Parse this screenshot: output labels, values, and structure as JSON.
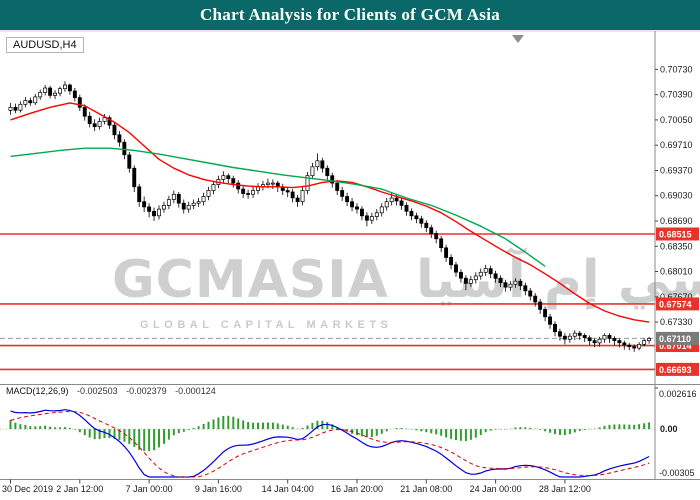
{
  "banner": {
    "title": "Chart Analysis for Clients of GCM Asia",
    "bg": "#0b6868",
    "fg": "#ffffff"
  },
  "chart": {
    "symbol_label": "AUDUSD,H4",
    "watermark": {
      "latin": "GCMASIA",
      "arabic": "جي سي إم آسيا",
      "red_mark": "●",
      "subtitle": "GLOBAL CAPITAL MARKETS"
    },
    "colors": {
      "level": "#e8332a",
      "ma_fast": "#ff0000",
      "ma_slow": "#00a94f",
      "macd_main": "#0000e0",
      "macd_signal": "#e00000",
      "macd_hist": "#2f9e2f",
      "bid_box": "#7a7a7a",
      "candle_up": "#ffffff",
      "candle_down": "#000000"
    }
  },
  "chart_data": {
    "type": "candlestick",
    "symbol": "AUDUSD",
    "timeframe": "H4",
    "price_axis": {
      "max": 0.7122,
      "min": 0.6651,
      "ticks": [
        "0.70730",
        "0.70390",
        "0.70050",
        "0.69710",
        "0.69370",
        "0.69030",
        "0.68690",
        "0.68350",
        "0.68010",
        "0.67670",
        "0.67330"
      ]
    },
    "time_axis": {
      "labels": [
        "30 Dec 2019",
        "2 Jan 12:00",
        "7 Jan 00:00",
        "9 Jan 16:00",
        "14 Jan 04:00",
        "16 Jan 20:00",
        "21 Jan 08:00",
        "24 Jan 00:00",
        "28 Jan 12:00"
      ],
      "anchor_indices": [
        0,
        14,
        28,
        42,
        56,
        70,
        84,
        98,
        112
      ]
    },
    "hlines": [
      {
        "price": 0.68515,
        "label": "0.68515"
      },
      {
        "price": 0.67574,
        "label": "0.67574"
      },
      {
        "price": 0.67014,
        "label": "0.67014"
      },
      {
        "price": 0.66693,
        "label": "0.66693"
      }
    ],
    "bid": {
      "price": 0.6711,
      "label": "0.67110"
    },
    "ma_fast": {
      "points": [
        [
          0,
          0.7005
        ],
        [
          4,
          0.7014
        ],
        [
          8,
          0.7022
        ],
        [
          12,
          0.7028
        ],
        [
          15,
          0.7024
        ],
        [
          18,
          0.7013
        ],
        [
          21,
          0.7002
        ],
        [
          24,
          0.6988
        ],
        [
          27,
          0.697
        ],
        [
          30,
          0.6952
        ],
        [
          33,
          0.694
        ],
        [
          36,
          0.6931
        ],
        [
          39,
          0.6925
        ],
        [
          42,
          0.6921
        ],
        [
          45,
          0.6918
        ],
        [
          48,
          0.6916
        ],
        [
          51,
          0.6915
        ],
        [
          54,
          0.6915
        ],
        [
          57,
          0.6914
        ],
        [
          60,
          0.6916
        ],
        [
          63,
          0.6921
        ],
        [
          66,
          0.6923
        ],
        [
          69,
          0.6921
        ],
        [
          72,
          0.6915
        ],
        [
          75,
          0.6908
        ],
        [
          78,
          0.6902
        ],
        [
          81,
          0.6896
        ],
        [
          84,
          0.6889
        ],
        [
          87,
          0.688
        ],
        [
          90,
          0.6868
        ],
        [
          93,
          0.6855
        ],
        [
          96,
          0.6843
        ],
        [
          99,
          0.6831
        ],
        [
          102,
          0.682
        ],
        [
          105,
          0.681
        ],
        [
          108,
          0.6798
        ],
        [
          111,
          0.6785
        ],
        [
          114,
          0.6771
        ],
        [
          117,
          0.6758
        ],
        [
          120,
          0.6748
        ],
        [
          123,
          0.6741
        ],
        [
          126,
          0.6736
        ],
        [
          129,
          0.6733
        ]
      ]
    },
    "ma_slow": {
      "points": [
        [
          0,
          0.6956
        ],
        [
          5,
          0.696
        ],
        [
          10,
          0.6964
        ],
        [
          15,
          0.6967
        ],
        [
          20,
          0.6967
        ],
        [
          25,
          0.6964
        ],
        [
          30,
          0.6959
        ],
        [
          35,
          0.6953
        ],
        [
          40,
          0.6947
        ],
        [
          45,
          0.6941
        ],
        [
          50,
          0.6936
        ],
        [
          55,
          0.6931
        ],
        [
          60,
          0.6927
        ],
        [
          65,
          0.6923
        ],
        [
          70,
          0.6918
        ],
        [
          75,
          0.6912
        ],
        [
          80,
          0.69
        ],
        [
          85,
          0.689
        ],
        [
          90,
          0.6877
        ],
        [
          95,
          0.6862
        ],
        [
          100,
          0.6845
        ],
        [
          104,
          0.6827
        ],
        [
          108,
          0.6808
        ]
      ]
    },
    "candles": [
      [
        0.7018,
        0.7028,
        0.7012,
        0.7022
      ],
      [
        0.7022,
        0.7027,
        0.7014,
        0.7018
      ],
      [
        0.7018,
        0.703,
        0.7015,
        0.7026
      ],
      [
        0.7026,
        0.7036,
        0.7022,
        0.7031
      ],
      [
        0.7031,
        0.7035,
        0.7024,
        0.7028
      ],
      [
        0.7028,
        0.704,
        0.7025,
        0.7036
      ],
      [
        0.7036,
        0.7046,
        0.7032,
        0.7042
      ],
      [
        0.7042,
        0.7052,
        0.7038,
        0.7048
      ],
      [
        0.7048,
        0.7051,
        0.7034,
        0.7038
      ],
      [
        0.7038,
        0.7045,
        0.7033,
        0.7041
      ],
      [
        0.7041,
        0.705,
        0.7037,
        0.7047
      ],
      [
        0.7047,
        0.7057,
        0.7043,
        0.7052
      ],
      [
        0.7052,
        0.7054,
        0.7039,
        0.7044
      ],
      [
        0.7044,
        0.7048,
        0.703,
        0.7035
      ],
      [
        0.7035,
        0.7039,
        0.7017,
        0.7022
      ],
      [
        0.7022,
        0.7026,
        0.7004,
        0.701
      ],
      [
        0.701,
        0.7016,
        0.6995,
        0.7
      ],
      [
        0.7,
        0.7006,
        0.699,
        0.6996
      ],
      [
        0.6996,
        0.7008,
        0.6992,
        0.7003
      ],
      [
        0.7003,
        0.7013,
        0.6999,
        0.7008
      ],
      [
        0.7008,
        0.7011,
        0.6993,
        0.6998
      ],
      [
        0.6998,
        0.7002,
        0.6979,
        0.6985
      ],
      [
        0.6985,
        0.699,
        0.6969,
        0.6975
      ],
      [
        0.6975,
        0.6979,
        0.6952,
        0.6958
      ],
      [
        0.6958,
        0.6962,
        0.6934,
        0.694
      ],
      [
        0.694,
        0.6944,
        0.6908,
        0.6915
      ],
      [
        0.6915,
        0.6919,
        0.6888,
        0.6895
      ],
      [
        0.6895,
        0.6902,
        0.6881,
        0.6888
      ],
      [
        0.6888,
        0.6893,
        0.6874,
        0.6882
      ],
      [
        0.6882,
        0.6887,
        0.6869,
        0.6876
      ],
      [
        0.6876,
        0.689,
        0.6871,
        0.6885
      ],
      [
        0.6885,
        0.6895,
        0.688,
        0.689
      ],
      [
        0.689,
        0.6903,
        0.6885,
        0.6898
      ],
      [
        0.6898,
        0.691,
        0.6893,
        0.6905
      ],
      [
        0.6905,
        0.6908,
        0.6887,
        0.6893
      ],
      [
        0.6893,
        0.6898,
        0.6879,
        0.6885
      ],
      [
        0.6885,
        0.6895,
        0.688,
        0.689
      ],
      [
        0.689,
        0.6898,
        0.6885,
        0.6893
      ],
      [
        0.6893,
        0.69,
        0.6888,
        0.6895
      ],
      [
        0.6895,
        0.6907,
        0.689,
        0.6902
      ],
      [
        0.6902,
        0.6915,
        0.6897,
        0.691
      ],
      [
        0.691,
        0.6923,
        0.6905,
        0.6918
      ],
      [
        0.6918,
        0.693,
        0.6913,
        0.6925
      ],
      [
        0.6925,
        0.6936,
        0.692,
        0.693
      ],
      [
        0.693,
        0.6933,
        0.692,
        0.6926
      ],
      [
        0.6926,
        0.693,
        0.6914,
        0.692
      ],
      [
        0.692,
        0.6924,
        0.6906,
        0.6912
      ],
      [
        0.6912,
        0.6917,
        0.69,
        0.6906
      ],
      [
        0.6906,
        0.6911,
        0.6899,
        0.6905
      ],
      [
        0.6905,
        0.6915,
        0.69,
        0.691
      ],
      [
        0.691,
        0.692,
        0.6905,
        0.6915
      ],
      [
        0.6915,
        0.6923,
        0.691,
        0.6918
      ],
      [
        0.6918,
        0.6926,
        0.6913,
        0.692
      ],
      [
        0.692,
        0.6925,
        0.6912,
        0.692
      ],
      [
        0.692,
        0.6923,
        0.6908,
        0.6915
      ],
      [
        0.6915,
        0.6919,
        0.6904,
        0.691
      ],
      [
        0.691,
        0.6915,
        0.6901,
        0.6908
      ],
      [
        0.6908,
        0.6912,
        0.6894,
        0.69
      ],
      [
        0.69,
        0.6904,
        0.6888,
        0.6895
      ],
      [
        0.6895,
        0.6915,
        0.689,
        0.691
      ],
      [
        0.691,
        0.6935,
        0.6905,
        0.693
      ],
      [
        0.693,
        0.6947,
        0.6925,
        0.6942
      ],
      [
        0.6942,
        0.696,
        0.6937,
        0.695
      ],
      [
        0.695,
        0.6954,
        0.6934,
        0.694
      ],
      [
        0.694,
        0.6944,
        0.6924,
        0.693
      ],
      [
        0.693,
        0.6934,
        0.6914,
        0.692
      ],
      [
        0.692,
        0.6924,
        0.6904,
        0.691
      ],
      [
        0.691,
        0.6915,
        0.6896,
        0.6902
      ],
      [
        0.6902,
        0.6907,
        0.6889,
        0.6895
      ],
      [
        0.6895,
        0.69,
        0.6882,
        0.6888
      ],
      [
        0.6888,
        0.6893,
        0.6879,
        0.6885
      ],
      [
        0.6885,
        0.6889,
        0.687,
        0.6876
      ],
      [
        0.6876,
        0.6881,
        0.6862,
        0.687
      ],
      [
        0.687,
        0.688,
        0.6865,
        0.6875
      ],
      [
        0.6875,
        0.6885,
        0.687,
        0.688
      ],
      [
        0.688,
        0.6893,
        0.6875,
        0.6888
      ],
      [
        0.6888,
        0.69,
        0.6883,
        0.6895
      ],
      [
        0.6895,
        0.6907,
        0.689,
        0.69
      ],
      [
        0.69,
        0.6904,
        0.689,
        0.6896
      ],
      [
        0.6896,
        0.69,
        0.6884,
        0.689
      ],
      [
        0.689,
        0.6894,
        0.6876,
        0.6882
      ],
      [
        0.6882,
        0.6886,
        0.687,
        0.6876
      ],
      [
        0.6876,
        0.688,
        0.6866,
        0.6872
      ],
      [
        0.6872,
        0.6876,
        0.686,
        0.6866
      ],
      [
        0.6866,
        0.687,
        0.6854,
        0.686
      ],
      [
        0.686,
        0.6864,
        0.6846,
        0.6852
      ],
      [
        0.6852,
        0.6856,
        0.6839,
        0.6845
      ],
      [
        0.6845,
        0.6849,
        0.6827,
        0.6833
      ],
      [
        0.6833,
        0.6837,
        0.6814,
        0.682
      ],
      [
        0.682,
        0.6824,
        0.6804,
        0.681
      ],
      [
        0.681,
        0.6814,
        0.6794,
        0.68
      ],
      [
        0.68,
        0.6804,
        0.6786,
        0.6792
      ],
      [
        0.6792,
        0.6796,
        0.6776,
        0.6785
      ],
      [
        0.6785,
        0.6795,
        0.678,
        0.679
      ],
      [
        0.679,
        0.68,
        0.6785,
        0.6795
      ],
      [
        0.6795,
        0.6805,
        0.679,
        0.68
      ],
      [
        0.68,
        0.681,
        0.6795,
        0.6805
      ],
      [
        0.6805,
        0.6809,
        0.6792,
        0.6798
      ],
      [
        0.6798,
        0.6802,
        0.6786,
        0.6792
      ],
      [
        0.6792,
        0.6796,
        0.678,
        0.6786
      ],
      [
        0.6786,
        0.679,
        0.6774,
        0.678
      ],
      [
        0.678,
        0.6788,
        0.6775,
        0.6784
      ],
      [
        0.6784,
        0.6792,
        0.6779,
        0.6788
      ],
      [
        0.6788,
        0.6791,
        0.6776,
        0.6782
      ],
      [
        0.6782,
        0.6786,
        0.6769,
        0.6775
      ],
      [
        0.6775,
        0.6779,
        0.6762,
        0.6768
      ],
      [
        0.6768,
        0.6772,
        0.6754,
        0.676
      ],
      [
        0.676,
        0.6764,
        0.6744,
        0.675
      ],
      [
        0.675,
        0.6754,
        0.6734,
        0.674
      ],
      [
        0.674,
        0.6744,
        0.6724,
        0.673
      ],
      [
        0.673,
        0.6734,
        0.6714,
        0.672
      ],
      [
        0.672,
        0.6724,
        0.6708,
        0.6714
      ],
      [
        0.6714,
        0.6718,
        0.6703,
        0.671
      ],
      [
        0.671,
        0.6718,
        0.6705,
        0.6714
      ],
      [
        0.6714,
        0.6722,
        0.6709,
        0.6718
      ],
      [
        0.6718,
        0.6721,
        0.6709,
        0.6715
      ],
      [
        0.6715,
        0.6718,
        0.6706,
        0.6712
      ],
      [
        0.6712,
        0.6715,
        0.6702,
        0.6708
      ],
      [
        0.6708,
        0.6711,
        0.6699,
        0.6705
      ],
      [
        0.6705,
        0.6713,
        0.67,
        0.671
      ],
      [
        0.671,
        0.6718,
        0.6705,
        0.6715
      ],
      [
        0.6715,
        0.6718,
        0.6705,
        0.6711
      ],
      [
        0.6711,
        0.6714,
        0.6702,
        0.6708
      ],
      [
        0.6708,
        0.6711,
        0.6699,
        0.6705
      ],
      [
        0.6705,
        0.6708,
        0.6696,
        0.6702
      ],
      [
        0.6702,
        0.6705,
        0.6695,
        0.67
      ],
      [
        0.67,
        0.6703,
        0.6693,
        0.6698
      ],
      [
        0.6698,
        0.6706,
        0.6695,
        0.6703
      ],
      [
        0.6703,
        0.6711,
        0.67,
        0.6708
      ],
      [
        0.6708,
        0.6713,
        0.6704,
        0.6711
      ]
    ],
    "macd": {
      "label": "MACD(12,26,9)",
      "params": [
        12,
        26,
        9
      ],
      "values": [
        "-0.002503",
        "-0.002379",
        "-0.000124"
      ],
      "max": 0.002616,
      "min": -0.00305,
      "scale_max_label": "0.002616",
      "scale_zero_label": "0.00",
      "scale_min_label": "-0.00305"
    }
  }
}
